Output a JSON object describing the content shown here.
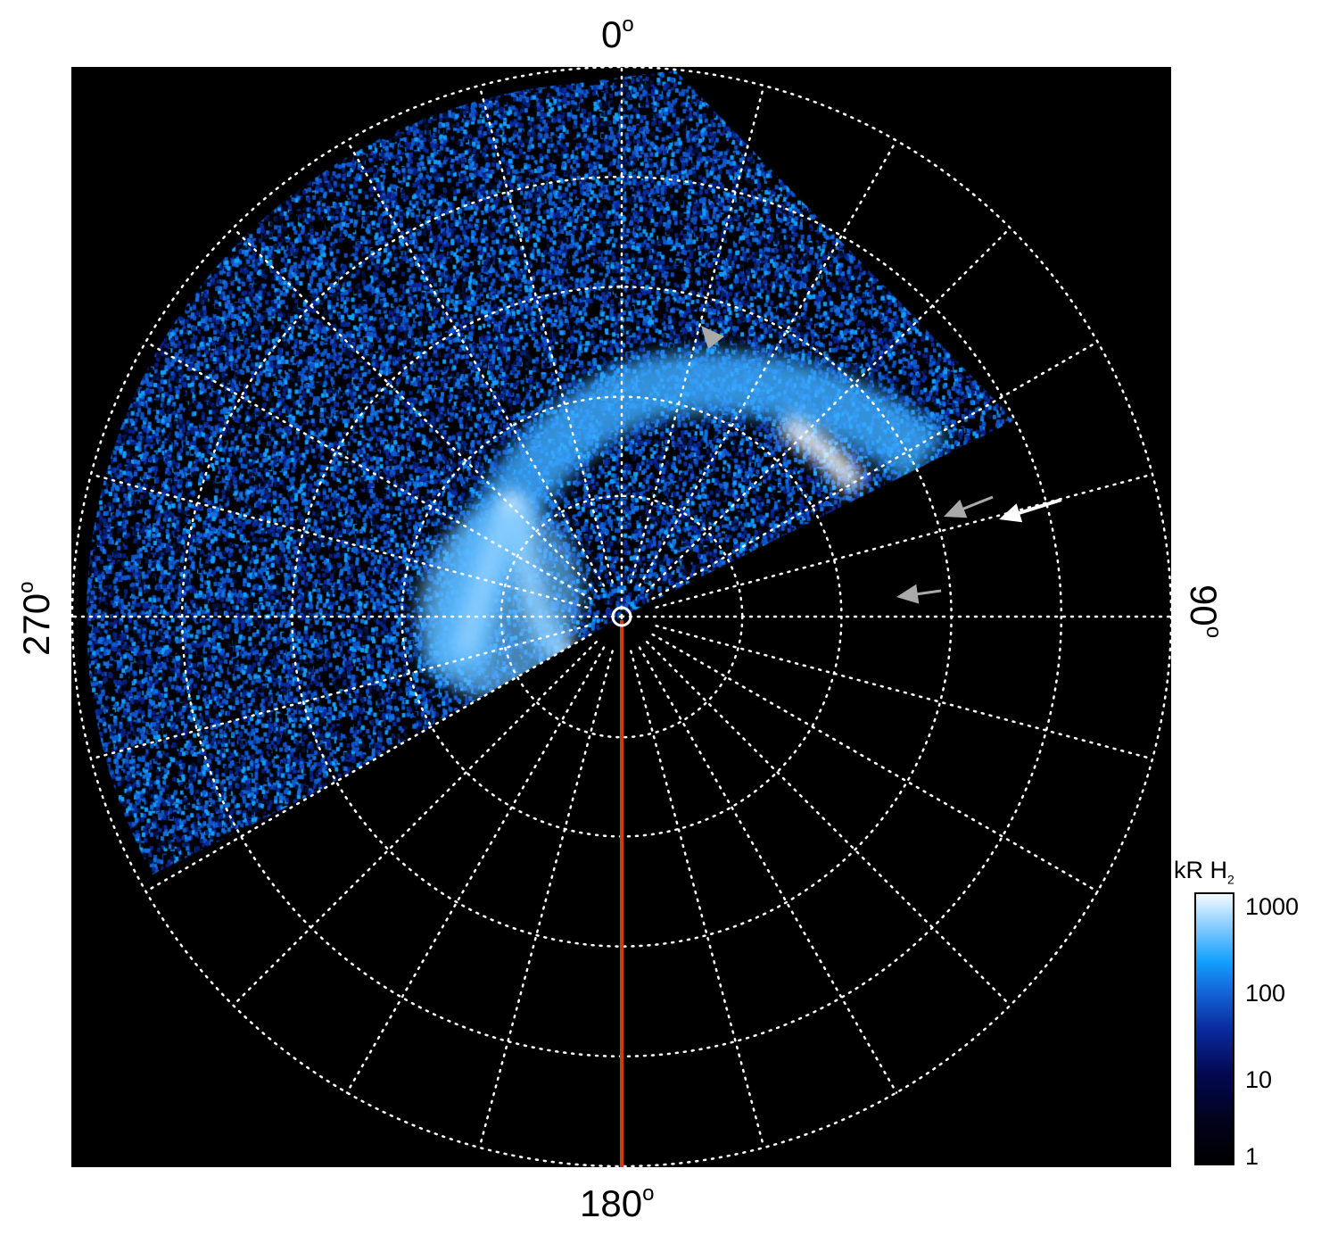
{
  "chart_data": {
    "type": "heatmap",
    "projection": "polar",
    "description_labels": {
      "longitude_labels": [
        "0°",
        "90°",
        "180°",
        "270°"
      ]
    },
    "grid": {
      "on": true,
      "longitude_step_deg": 15,
      "rings": 5,
      "style": "dotted white"
    },
    "colorbar": {
      "label": "kR H",
      "label_subscript": "2",
      "scale": "log",
      "range": [
        1,
        1000
      ],
      "ticks": [
        "1",
        "10",
        "100",
        "1000"
      ],
      "colormap": [
        "#000000",
        "#030850",
        "#1470e0",
        "#12a0ff",
        "#ffffff"
      ]
    },
    "reference_line": {
      "longitude_deg": 180,
      "color": "#d03a10"
    },
    "annotations": [
      {
        "type": "arrow",
        "color": "#aaaaaa",
        "name": "arrow-gray-upper"
      },
      {
        "type": "arrow",
        "color": "#aaaaaa",
        "name": "arrow-gray-right"
      },
      {
        "type": "arrow",
        "color": "#ffffff",
        "name": "arrow-white-right"
      },
      {
        "type": "arrow",
        "color": "#aaaaaa",
        "name": "arrow-gray-lower"
      }
    ]
  }
}
